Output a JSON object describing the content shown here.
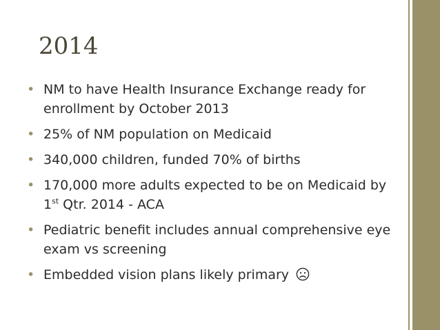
{
  "slide": {
    "title": "2014",
    "bullets": [
      {
        "text": "NM to have Health Insurance Exchange ready for enrollment by October 2013"
      },
      {
        "text": "25% of NM population on Medicaid"
      },
      {
        "text": "340,000 children, funded 70% of births"
      },
      {
        "pre": "170,000 more adults expected to be on Medicaid by 1",
        "sup": "st",
        "post": " Qtr. 2014 - ACA"
      },
      {
        "text": "Pediatric benefit includes annual comprehensive eye exam vs screening"
      },
      {
        "text": "Embedded vision plans likely primary",
        "icon": "sad-face-icon"
      }
    ]
  },
  "colors": {
    "accent": "#9a9169",
    "title": "#4a4535",
    "body_text": "#2b2b2b",
    "background": "#ffffff"
  }
}
